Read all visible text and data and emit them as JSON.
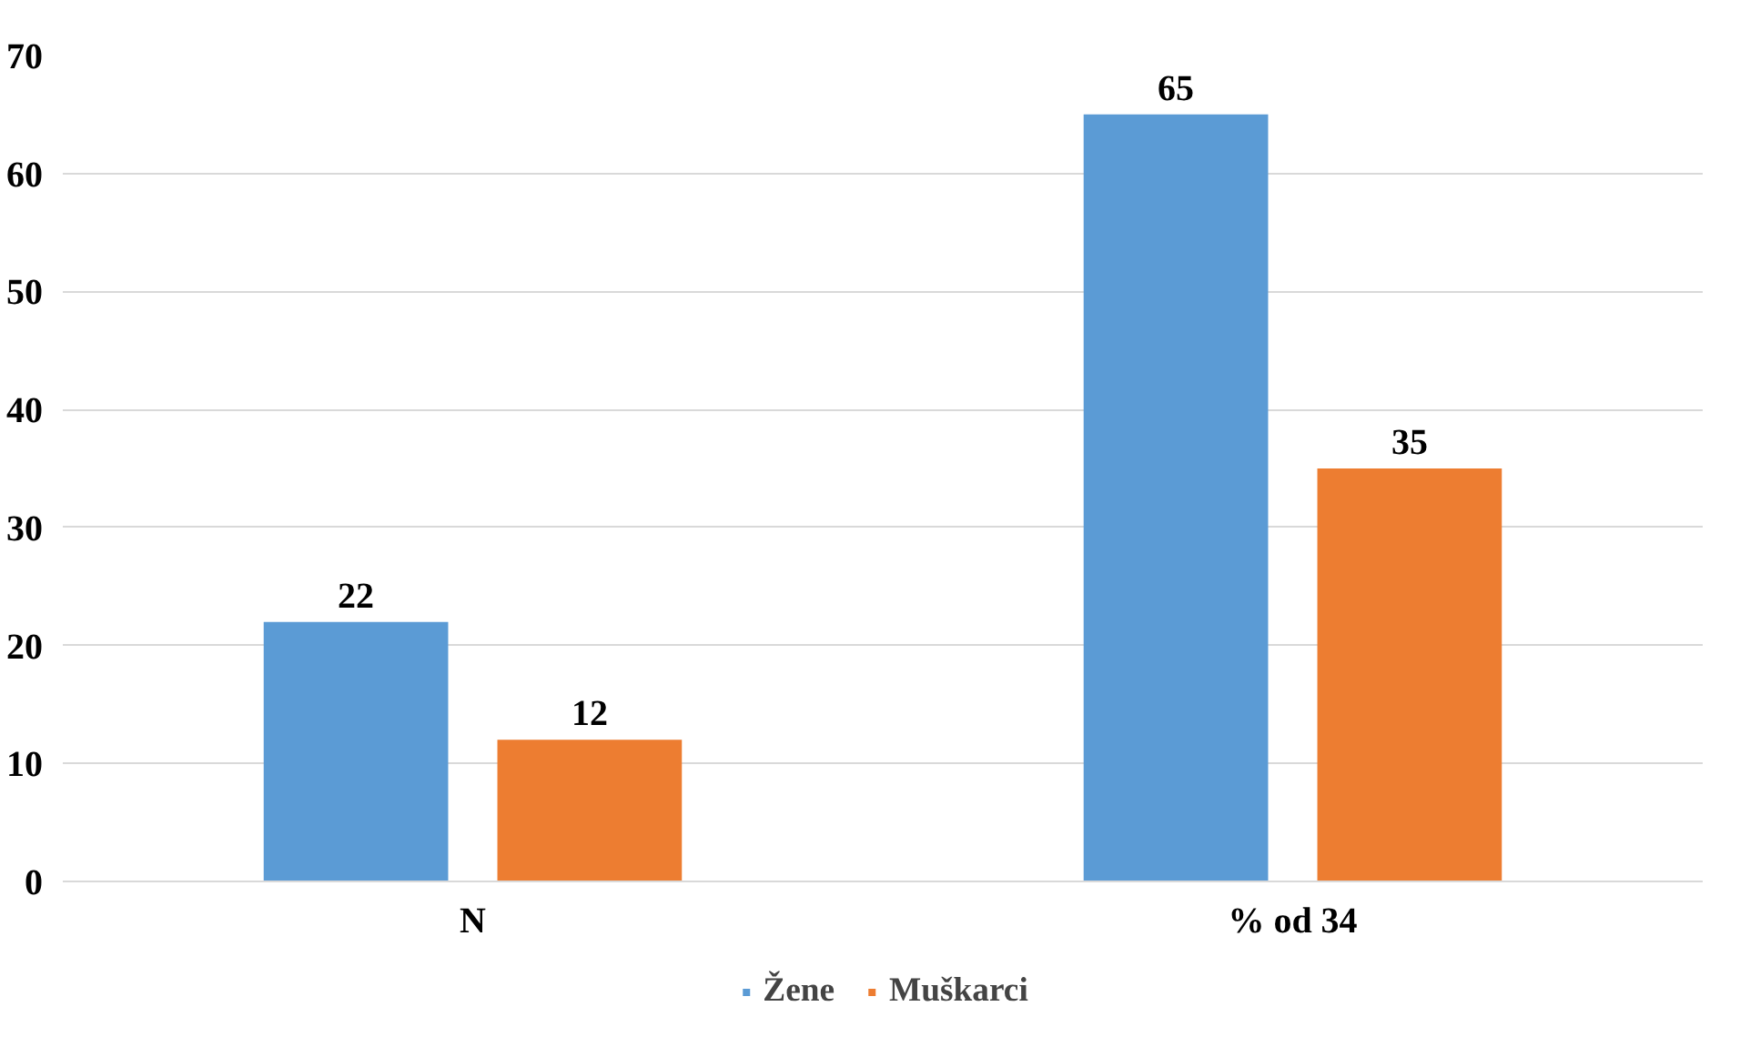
{
  "chart_data": {
    "type": "bar",
    "categories": [
      "N",
      "% od 34"
    ],
    "series": [
      {
        "name": "Žene",
        "color": "#5b9bd5",
        "values": [
          22,
          65
        ]
      },
      {
        "name": "Muškarci",
        "color": "#ed7d31",
        "values": [
          12,
          35
        ]
      }
    ],
    "ylim": [
      0,
      70
    ],
    "yticks": [
      0,
      10,
      20,
      30,
      40,
      50,
      60,
      70
    ],
    "grid": "y",
    "legend": "bottom",
    "data_labels": true
  }
}
